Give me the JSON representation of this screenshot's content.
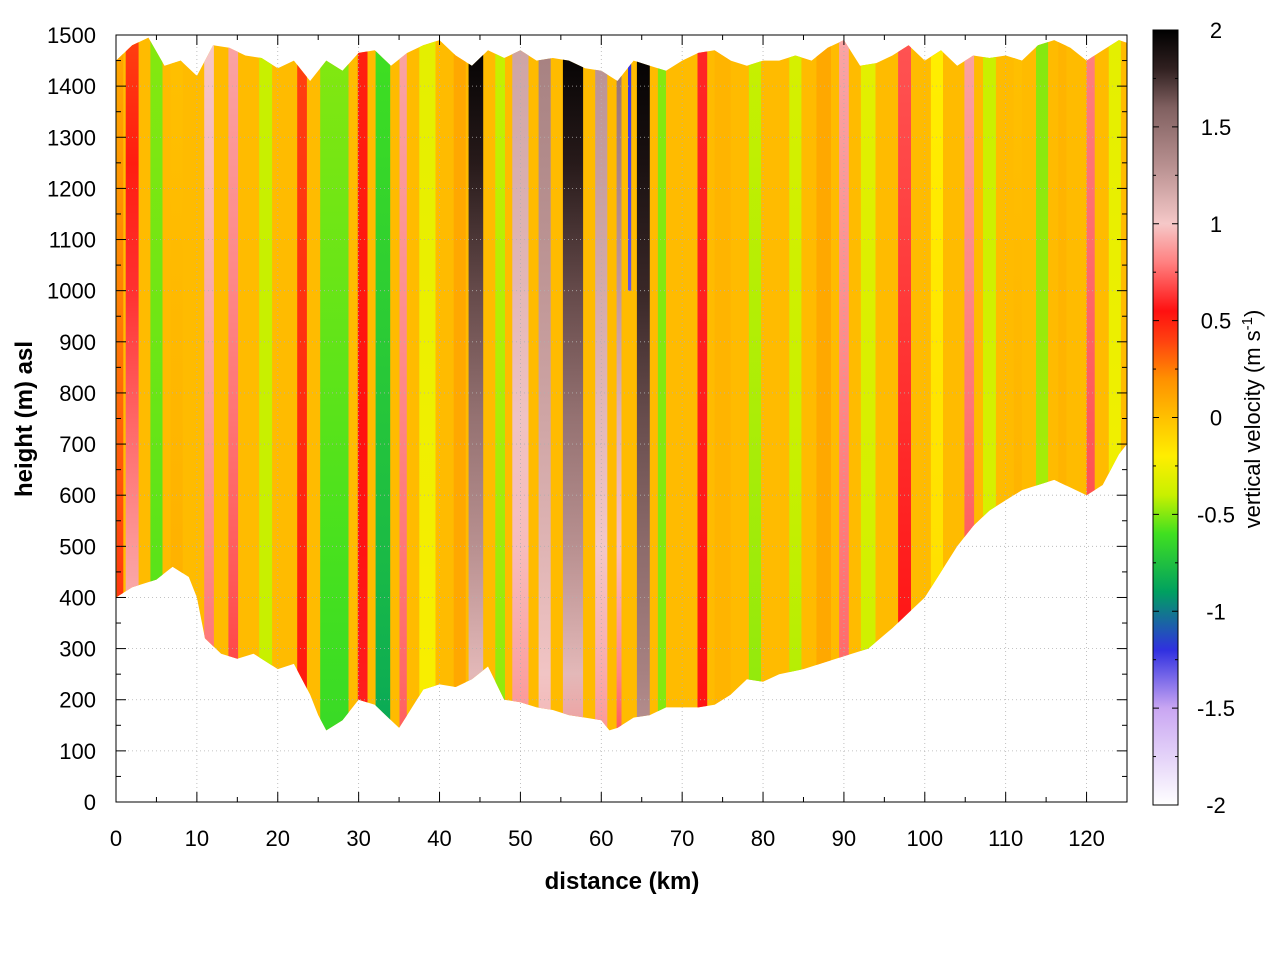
{
  "chart_data": {
    "type": "heatmap",
    "title": "",
    "xlabel": "distance (km)",
    "ylabel": "height (m) asl",
    "xlim": [
      0,
      125
    ],
    "ylim": [
      0,
      1500
    ],
    "x_ticks": [
      0,
      10,
      20,
      30,
      40,
      50,
      60,
      70,
      80,
      90,
      100,
      110,
      120
    ],
    "y_ticks": [
      0,
      100,
      200,
      300,
      400,
      500,
      600,
      700,
      800,
      900,
      1000,
      1100,
      1200,
      1300,
      1400,
      1500
    ],
    "grid": true,
    "colorbar": {
      "label": "vertical velocity (m s-1)",
      "label_main": "vertical velocity (m s",
      "label_sup": "-1",
      "label_end": ")",
      "range": [
        -2,
        2
      ],
      "ticks": [
        -2,
        -1.5,
        -1,
        -0.5,
        0,
        0.5,
        1,
        1.5,
        2
      ],
      "tick_labels": [
        "-2",
        "-1.5",
        "-1",
        "-0.5",
        "0",
        "0.5",
        "1",
        "1.5",
        "2"
      ],
      "stops": [
        {
          "v": -2.0,
          "c": "#ffffff"
        },
        {
          "v": -1.5,
          "c": "#c9a6f2"
        },
        {
          "v": -1.2,
          "c": "#3030e0"
        },
        {
          "v": -0.9,
          "c": "#00a060"
        },
        {
          "v": -0.6,
          "c": "#40e020"
        },
        {
          "v": -0.4,
          "c": "#c8f000"
        },
        {
          "v": -0.2,
          "c": "#ffee00"
        },
        {
          "v": 0.0,
          "c": "#ffc000"
        },
        {
          "v": 0.2,
          "c": "#ff9000"
        },
        {
          "v": 0.4,
          "c": "#ff4010"
        },
        {
          "v": 0.55,
          "c": "#ff1010"
        },
        {
          "v": 0.8,
          "c": "#ff8080"
        },
        {
          "v": 1.0,
          "c": "#f5c8c8"
        },
        {
          "v": 1.3,
          "c": "#b89090"
        },
        {
          "v": 1.6,
          "c": "#806060"
        },
        {
          "v": 1.8,
          "c": "#302020"
        },
        {
          "v": 2.0,
          "c": "#000000"
        }
      ]
    },
    "lower_boundary": [
      [
        0,
        400
      ],
      [
        2,
        420
      ],
      [
        5,
        435
      ],
      [
        7,
        460
      ],
      [
        9,
        440
      ],
      [
        10,
        400
      ],
      [
        11,
        320
      ],
      [
        13,
        290
      ],
      [
        15,
        280
      ],
      [
        17,
        290
      ],
      [
        20,
        260
      ],
      [
        22,
        270
      ],
      [
        24,
        210
      ],
      [
        25,
        170
      ],
      [
        26,
        140
      ],
      [
        28,
        160
      ],
      [
        30,
        200
      ],
      [
        32,
        190
      ],
      [
        34,
        160
      ],
      [
        35,
        145
      ],
      [
        36,
        170
      ],
      [
        38,
        220
      ],
      [
        40,
        230
      ],
      [
        42,
        225
      ],
      [
        44,
        240
      ],
      [
        46,
        265
      ],
      [
        48,
        200
      ],
      [
        50,
        195
      ],
      [
        52,
        185
      ],
      [
        54,
        180
      ],
      [
        56,
        170
      ],
      [
        58,
        165
      ],
      [
        60,
        160
      ],
      [
        61,
        140
      ],
      [
        62,
        145
      ],
      [
        64,
        165
      ],
      [
        66,
        170
      ],
      [
        68,
        185
      ],
      [
        70,
        185
      ],
      [
        72,
        185
      ],
      [
        74,
        190
      ],
      [
        76,
        210
      ],
      [
        78,
        240
      ],
      [
        80,
        235
      ],
      [
        82,
        250
      ],
      [
        85,
        260
      ],
      [
        88,
        275
      ],
      [
        90,
        285
      ],
      [
        93,
        300
      ],
      [
        96,
        340
      ],
      [
        98,
        370
      ],
      [
        100,
        400
      ],
      [
        102,
        450
      ],
      [
        104,
        500
      ],
      [
        106,
        540
      ],
      [
        108,
        570
      ],
      [
        110,
        590
      ],
      [
        112,
        610
      ],
      [
        114,
        620
      ],
      [
        116,
        630
      ],
      [
        118,
        615
      ],
      [
        120,
        600
      ],
      [
        122,
        620
      ],
      [
        124,
        680
      ],
      [
        125,
        700
      ]
    ],
    "upper_boundary": [
      [
        0,
        1450
      ],
      [
        2,
        1480
      ],
      [
        4,
        1495
      ],
      [
        6,
        1440
      ],
      [
        8,
        1450
      ],
      [
        10,
        1420
      ],
      [
        12,
        1480
      ],
      [
        14,
        1475
      ],
      [
        16,
        1460
      ],
      [
        18,
        1455
      ],
      [
        20,
        1435
      ],
      [
        22,
        1450
      ],
      [
        24,
        1410
      ],
      [
        26,
        1450
      ],
      [
        28,
        1430
      ],
      [
        30,
        1465
      ],
      [
        32,
        1470
      ],
      [
        34,
        1440
      ],
      [
        36,
        1465
      ],
      [
        38,
        1480
      ],
      [
        40,
        1490
      ],
      [
        42,
        1460
      ],
      [
        44,
        1440
      ],
      [
        46,
        1470
      ],
      [
        48,
        1455
      ],
      [
        50,
        1470
      ],
      [
        52,
        1450
      ],
      [
        54,
        1455
      ],
      [
        56,
        1450
      ],
      [
        58,
        1435
      ],
      [
        60,
        1430
      ],
      [
        62,
        1410
      ],
      [
        64,
        1450
      ],
      [
        66,
        1440
      ],
      [
        68,
        1430
      ],
      [
        70,
        1450
      ],
      [
        72,
        1465
      ],
      [
        74,
        1470
      ],
      [
        76,
        1450
      ],
      [
        78,
        1440
      ],
      [
        80,
        1450
      ],
      [
        82,
        1450
      ],
      [
        84,
        1460
      ],
      [
        86,
        1450
      ],
      [
        88,
        1475
      ],
      [
        90,
        1490
      ],
      [
        92,
        1440
      ],
      [
        94,
        1445
      ],
      [
        96,
        1460
      ],
      [
        98,
        1480
      ],
      [
        100,
        1450
      ],
      [
        102,
        1470
      ],
      [
        104,
        1440
      ],
      [
        106,
        1460
      ],
      [
        108,
        1455
      ],
      [
        110,
        1460
      ],
      [
        112,
        1450
      ],
      [
        114,
        1480
      ],
      [
        116,
        1490
      ],
      [
        118,
        1475
      ],
      [
        120,
        1450
      ],
      [
        122,
        1470
      ],
      [
        124,
        1490
      ],
      [
        125,
        1485
      ]
    ],
    "vertical_velocity_bands": [
      {
        "x": 0.5,
        "w": 0.8,
        "w_low": 0.6,
        "w_top": 0.1,
        "top_only": false
      },
      {
        "x": 2,
        "w": 1.6,
        "w_low": 1.2,
        "w_top": 0.4,
        "top_only": false
      },
      {
        "x": 5,
        "w": 1.5,
        "w_low": -0.6,
        "w_top": -0.5,
        "top_only": false
      },
      {
        "x": 7.5,
        "w": 1.5,
        "w_low": 0.1,
        "w_top": 0.0,
        "top_only": false
      },
      {
        "x": 11.5,
        "w": 1.2,
        "w_low": 0.7,
        "w_top": 1.0,
        "top_only": false
      },
      {
        "x": 14.5,
        "w": 1.2,
        "w_low": 0.6,
        "w_top": 0.9,
        "top_only": false
      },
      {
        "x": 18.5,
        "w": 1.6,
        "w_low": -0.4,
        "w_top": -0.4,
        "top_only": false
      },
      {
        "x": 23,
        "w": 1.2,
        "w_low": 0.55,
        "w_top": 0.4,
        "top_only": false
      },
      {
        "x": 27,
        "w": 3.5,
        "w_low": -0.65,
        "w_top": -0.5,
        "top_only": false
      },
      {
        "x": 30.5,
        "w": 1.2,
        "w_low": 0.6,
        "w_top": 0.5,
        "top_only": false
      },
      {
        "x": 33,
        "w": 1.8,
        "w_low": -0.9,
        "w_top": -0.6,
        "top_only": false
      },
      {
        "x": 35.5,
        "w": 0.9,
        "w_low": 0.7,
        "w_top": 0.9,
        "top_only": false
      },
      {
        "x": 38.5,
        "w": 2.0,
        "w_low": -0.2,
        "w_top": -0.3,
        "top_only": false
      },
      {
        "x": 42.5,
        "w": 1.5,
        "w_low": 0.1,
        "w_top": 0.1,
        "top_only": false
      },
      {
        "x": 44.5,
        "w": 1.8,
        "w_low": 0.8,
        "w_top": 2.0,
        "top_only": false
      },
      {
        "x": 47.5,
        "w": 1.2,
        "w_low": -0.5,
        "w_top": -0.4,
        "top_only": false
      },
      {
        "x": 50,
        "w": 2.0,
        "w_low": 0.8,
        "w_top": 1.2,
        "top_only": false
      },
      {
        "x": 53,
        "w": 1.5,
        "w_low": 0.9,
        "w_top": 1.4,
        "top_only": false
      },
      {
        "x": 56.5,
        "w": 2.5,
        "w_low": 0.8,
        "w_top": 2.0,
        "top_only": false
      },
      {
        "x": 60,
        "w": 1.5,
        "w_low": 0.8,
        "w_top": 1.3,
        "top_only": false
      },
      {
        "x": 62.2,
        "w": 0.6,
        "w_low": 0.6,
        "w_top": 1.5,
        "top_only": false
      },
      {
        "x": 63.5,
        "w": 0.4,
        "w_low": -1.3,
        "w_top": -1.2,
        "top_only": true
      },
      {
        "x": 65.2,
        "w": 1.6,
        "w_low": 1.2,
        "w_top": 2.0,
        "top_only": false
      },
      {
        "x": 67.5,
        "w": 1.0,
        "w_low": -0.5,
        "w_top": -0.5,
        "top_only": false
      },
      {
        "x": 72.5,
        "w": 1.2,
        "w_low": 0.55,
        "w_top": 0.6,
        "top_only": false
      },
      {
        "x": 75,
        "w": 2.0,
        "w_low": 0.05,
        "w_top": 0.05,
        "top_only": false
      },
      {
        "x": 79,
        "w": 1.5,
        "w_low": -0.5,
        "w_top": -0.4,
        "top_only": false
      },
      {
        "x": 84,
        "w": 1.5,
        "w_low": -0.45,
        "w_top": -0.35,
        "top_only": false
      },
      {
        "x": 87.5,
        "w": 1.8,
        "w_low": 0.1,
        "w_top": 0.1,
        "top_only": false
      },
      {
        "x": 90,
        "w": 1.2,
        "w_low": 0.7,
        "w_top": 0.9,
        "top_only": false
      },
      {
        "x": 93,
        "w": 1.8,
        "w_low": -0.4,
        "w_top": -0.3,
        "top_only": false
      },
      {
        "x": 97.5,
        "w": 1.6,
        "w_low": 0.5,
        "w_top": 0.7,
        "top_only": false
      },
      {
        "x": 101.5,
        "w": 1.5,
        "w_low": -0.1,
        "w_top": -0.2,
        "top_only": false
      },
      {
        "x": 105.5,
        "w": 1.2,
        "w_low": 0.6,
        "w_top": 0.9,
        "top_only": false
      },
      {
        "x": 108,
        "w": 1.6,
        "w_low": -0.3,
        "w_top": -0.4,
        "top_only": false
      },
      {
        "x": 111.5,
        "w": 1.0,
        "w_low": 0.1,
        "w_top": 0.0,
        "top_only": false
      },
      {
        "x": 114.5,
        "w": 1.5,
        "w_low": -0.4,
        "w_top": -0.5,
        "top_only": false
      },
      {
        "x": 117,
        "w": 1.0,
        "w_low": 0.05,
        "w_top": 0.05,
        "top_only": false
      },
      {
        "x": 120.5,
        "w": 1.0,
        "w_low": 0.6,
        "w_top": 0.8,
        "top_only": false
      },
      {
        "x": 123.5,
        "w": 1.5,
        "w_low": -0.2,
        "w_top": -0.3,
        "top_only": false
      }
    ]
  }
}
